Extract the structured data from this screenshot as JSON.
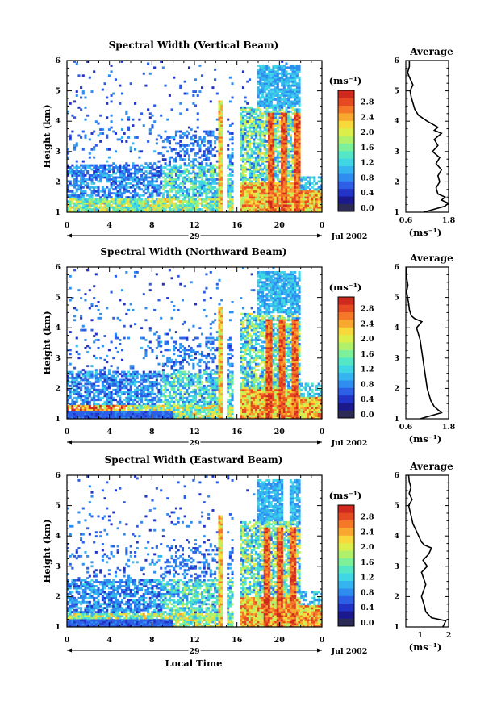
{
  "chart_data": [
    {
      "type": "heatmap",
      "title": "Spectral Width (Vertical Beam)",
      "ylabel": "Height (km)",
      "xlabel": "",
      "x_ticks": [
        "0",
        "4",
        "8",
        "12",
        "16",
        "20",
        "0"
      ],
      "xlim": [
        0,
        24
      ],
      "y_ticks": [
        "1",
        "2",
        "3",
        "4",
        "5",
        "6"
      ],
      "ylim": [
        1,
        6
      ],
      "date_day": "29",
      "date_month": "Jul 2002",
      "colorbar": {
        "unit": "(ms⁻¹)",
        "ticks": [
          "0.0",
          "0.4",
          "0.8",
          "1.2",
          "1.6",
          "2.0",
          "2.4",
          "2.8"
        ],
        "range": [
          0.0,
          3.0
        ]
      },
      "average": {
        "title": "Average",
        "xlabel": "(ms⁻¹)",
        "x_ticks": [
          "0.6",
          "1.8"
        ],
        "xlim": [
          0.6,
          1.8
        ],
        "y_ticks": [
          "1",
          "2",
          "3",
          "4",
          "5",
          "6"
        ],
        "profile": [
          [
            1.0,
            1.1
          ],
          [
            1.2,
            1.7
          ],
          [
            1.3,
            1.8
          ],
          [
            1.4,
            1.6
          ],
          [
            1.5,
            1.7
          ],
          [
            1.6,
            1.5
          ],
          [
            1.8,
            1.45
          ],
          [
            2.0,
            1.55
          ],
          [
            2.2,
            1.5
          ],
          [
            2.4,
            1.6
          ],
          [
            2.6,
            1.45
          ],
          [
            2.8,
            1.55
          ],
          [
            3.0,
            1.35
          ],
          [
            3.2,
            1.5
          ],
          [
            3.4,
            1.4
          ],
          [
            3.6,
            1.6
          ],
          [
            3.7,
            1.4
          ],
          [
            3.8,
            1.5
          ],
          [
            4.0,
            1.2
          ],
          [
            4.2,
            0.95
          ],
          [
            4.4,
            0.85
          ],
          [
            4.6,
            0.8
          ],
          [
            4.8,
            0.75
          ],
          [
            5.0,
            0.72
          ],
          [
            5.2,
            0.8
          ],
          [
            5.4,
            0.72
          ],
          [
            5.6,
            0.65
          ],
          [
            5.8,
            0.7
          ],
          [
            6.0,
            0.7
          ]
        ]
      }
    },
    {
      "type": "heatmap",
      "title": "Spectral Width (Northward Beam)",
      "ylabel": "Height (km)",
      "xlabel": "",
      "x_ticks": [
        "0",
        "4",
        "8",
        "12",
        "16",
        "20",
        "0"
      ],
      "xlim": [
        0,
        24
      ],
      "y_ticks": [
        "1",
        "2",
        "3",
        "4",
        "5",
        "6"
      ],
      "ylim": [
        1,
        6
      ],
      "date_day": "29",
      "date_month": "Jul 2002",
      "colorbar": {
        "unit": "(ms⁻¹)",
        "ticks": [
          "0.0",
          "0.4",
          "0.8",
          "1.2",
          "1.6",
          "2.0",
          "2.4",
          "2.8"
        ],
        "range": [
          0.0,
          3.0
        ]
      },
      "average": {
        "title": "Average",
        "xlabel": "(ms⁻¹)",
        "x_ticks": [
          "0.6",
          "1.8"
        ],
        "xlim": [
          0.6,
          1.8
        ],
        "y_ticks": [
          "1",
          "2",
          "3",
          "4",
          "5",
          "6"
        ],
        "profile": [
          [
            1.0,
            1.0
          ],
          [
            1.2,
            1.6
          ],
          [
            1.4,
            1.4
          ],
          [
            1.6,
            1.3
          ],
          [
            1.8,
            1.25
          ],
          [
            2.0,
            1.2
          ],
          [
            2.4,
            1.15
          ],
          [
            2.8,
            1.1
          ],
          [
            3.2,
            1.05
          ],
          [
            3.6,
            1.0
          ],
          [
            3.8,
            0.95
          ],
          [
            4.0,
            0.9
          ],
          [
            4.2,
            1.05
          ],
          [
            4.3,
            0.85
          ],
          [
            4.4,
            0.75
          ],
          [
            4.6,
            0.7
          ],
          [
            4.8,
            0.68
          ],
          [
            5.0,
            0.65
          ],
          [
            5.2,
            0.62
          ],
          [
            5.4,
            0.66
          ],
          [
            5.6,
            0.63
          ],
          [
            5.8,
            0.62
          ],
          [
            6.0,
            0.62
          ]
        ]
      }
    },
    {
      "type": "heatmap",
      "title": "Spectral Width (Eastward Beam)",
      "ylabel": "Height (km)",
      "xlabel": "Local Time",
      "x_ticks": [
        "0",
        "4",
        "8",
        "12",
        "16",
        "20",
        "0"
      ],
      "xlim": [
        0,
        24
      ],
      "y_ticks": [
        "1",
        "2",
        "3",
        "4",
        "5",
        "6"
      ],
      "ylim": [
        1,
        6
      ],
      "date_day": "29",
      "date_month": "Jul 2002",
      "colorbar": {
        "unit": "(ms⁻¹)",
        "ticks": [
          "0.0",
          "0.4",
          "0.8",
          "1.2",
          "1.6",
          "2.0",
          "2.4",
          "2.8"
        ],
        "range": [
          0.0,
          3.0
        ]
      },
      "average": {
        "title": "Average",
        "xlabel": "(ms⁻¹)",
        "x_ticks": [
          "1",
          "2"
        ],
        "xlim": [
          0.5,
          2.0
        ],
        "y_ticks": [
          "1",
          "2",
          "3",
          "4",
          "5",
          "6"
        ],
        "profile": [
          [
            1.0,
            1.8
          ],
          [
            1.2,
            1.9
          ],
          [
            1.3,
            1.4
          ],
          [
            1.5,
            1.2
          ],
          [
            1.7,
            1.15
          ],
          [
            2.0,
            1.05
          ],
          [
            2.4,
            1.2
          ],
          [
            2.8,
            1.05
          ],
          [
            3.0,
            1.25
          ],
          [
            3.2,
            1.1
          ],
          [
            3.4,
            1.3
          ],
          [
            3.6,
            1.4
          ],
          [
            3.7,
            1.15
          ],
          [
            3.8,
            1.05
          ],
          [
            4.0,
            0.95
          ],
          [
            4.2,
            0.85
          ],
          [
            4.4,
            0.75
          ],
          [
            4.6,
            0.7
          ],
          [
            4.8,
            0.65
          ],
          [
            5.0,
            0.6
          ],
          [
            5.2,
            0.72
          ],
          [
            5.4,
            0.62
          ],
          [
            5.6,
            0.68
          ],
          [
            5.8,
            0.62
          ],
          [
            6.0,
            0.6
          ]
        ]
      }
    }
  ]
}
